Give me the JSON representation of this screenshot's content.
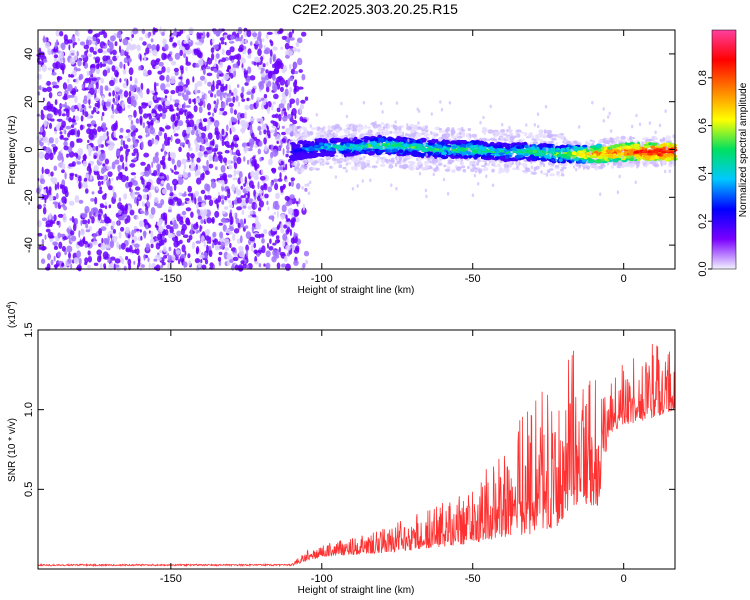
{
  "title": "C2E2.2025.303.20.25.R15",
  "chart_data": [
    {
      "type": "heatmap",
      "name": "spectrogram",
      "xlabel": "Height of straight line (km)",
      "ylabel": "Frequency (Hz)",
      "xlim": [
        -194,
        17
      ],
      "ylim": [
        -50,
        50
      ],
      "xticks": [
        -150,
        -100,
        -50,
        0
      ],
      "yticks": [
        -40,
        -20,
        0,
        20,
        40
      ],
      "noise_region_x": [
        -194,
        -108
      ],
      "signal_track": {
        "x": [
          -110,
          -100,
          -90,
          -80,
          -70,
          -60,
          -50,
          -40,
          -30,
          -20,
          -10,
          0,
          10,
          17
        ],
        "freq_hz": [
          -1,
          1,
          1,
          2,
          1,
          0,
          0,
          -1,
          -1,
          -2,
          -2,
          -1,
          -1,
          -1
        ],
        "amplitude": [
          0.25,
          0.4,
          0.45,
          0.5,
          0.5,
          0.48,
          0.5,
          0.45,
          0.5,
          0.55,
          0.75,
          0.8,
          0.9,
          0.9
        ]
      },
      "colorbar": {
        "label": "Normalized spectral amplitude",
        "range": [
          0,
          1
        ],
        "ticks": [
          "0.0",
          "0.2",
          "0.4",
          "0.6",
          "0.8"
        ],
        "colors": [
          "#f2f2ff",
          "#7a00ff",
          "#0000ff",
          "#00c8ff",
          "#00e060",
          "#ffff00",
          "#ff8000",
          "#ff0000",
          "#ff40a0"
        ]
      }
    },
    {
      "type": "line",
      "name": "snr",
      "xlabel": "Height of straight line (km)",
      "ylabel": "SNR (10 * v/v)",
      "scale_label": "(x10",
      "scale_exp": "4",
      "scale_close": ")",
      "xlim": [
        -194,
        17
      ],
      "ylim": [
        0,
        1.5
      ],
      "xticks": [
        -150,
        -100,
        -50,
        0
      ],
      "yticks": [
        "0.5",
        "1.0",
        "1.5"
      ],
      "color": "#ff3030",
      "envelope": {
        "x": [
          -194,
          -110,
          -105,
          -100,
          -80,
          -60,
          -50,
          -40,
          -30,
          -20,
          -18,
          -8,
          -5,
          0,
          10,
          17
        ],
        "base": [
          0.02,
          0.02,
          0.05,
          0.08,
          0.1,
          0.14,
          0.16,
          0.2,
          0.22,
          0.28,
          0.4,
          0.4,
          0.85,
          0.9,
          0.95,
          1.0
        ],
        "peak": [
          0.03,
          0.03,
          0.12,
          0.15,
          0.25,
          0.42,
          0.52,
          0.78,
          1.15,
          1.05,
          1.4,
          1.25,
          1.2,
          1.3,
          1.45,
          1.4
        ]
      }
    }
  ]
}
